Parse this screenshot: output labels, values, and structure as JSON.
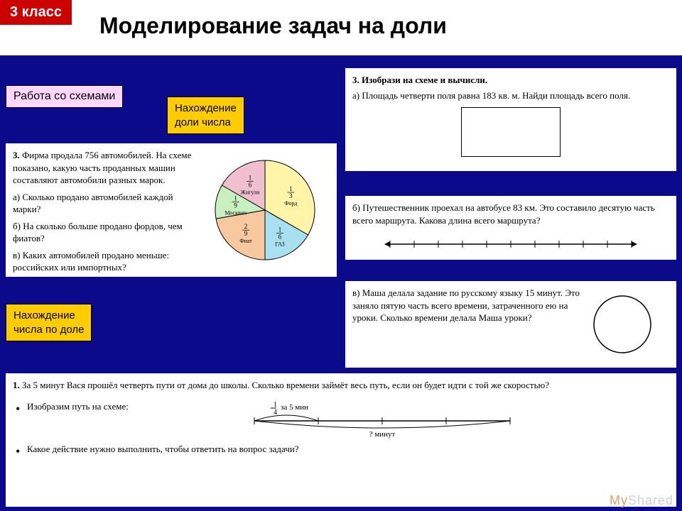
{
  "header": {
    "grade_badge": "3 класс",
    "title": "Моделирование задач на доли"
  },
  "labels": {
    "pink": "Работа со схемами",
    "yellow1_l1": "Нахождение",
    "yellow1_l2": "доли числа",
    "yellow2_l1": "Нахождение",
    "yellow2_l2": "числа по доле"
  },
  "task_cars": {
    "num": "3.",
    "intro": "Фирма продала 756 автомобилей. На схеме показано, какую часть проданных машин составляют автомобили разных марок.",
    "a": "а) Сколько продано автомобилей каждой марки?",
    "b": "б) На сколько больше продано фордов, чем фиатов?",
    "c": "в) Каких автомобилей продано меньше: российских или импортных?",
    "pie": {
      "slices": [
        {
          "label": "Форд",
          "frac_n": "1",
          "frac_d": "3",
          "start": -90,
          "end": 30,
          "fill": "#fff4a8"
        },
        {
          "label": "ГАЗ",
          "frac_n": "1",
          "frac_d": "6",
          "start": 30,
          "end": 90,
          "fill": "#a8e0f0"
        },
        {
          "label": "Фиат",
          "frac_n": "2",
          "frac_d": "9",
          "start": 90,
          "end": 170,
          "fill": "#f8c8a0"
        },
        {
          "label": "Москвич",
          "frac_n": "1",
          "frac_d": "9",
          "start": 170,
          "end": 210,
          "fill": "#c8f0c0"
        },
        {
          "label": "Жигули",
          "frac_n": "1",
          "frac_d": "6",
          "start": 210,
          "end": 270,
          "fill": "#f0c0d0"
        }
      ],
      "stroke": "#000000"
    }
  },
  "task_scheme": {
    "num": "3.",
    "title": "Изобрази на схеме и вычисли.",
    "a": "а) Площадь четверти поля равна 183 кв. м. Найди площадь всего поля."
  },
  "task_travel": {
    "b": "б) Путешественник проехал на автобусе 83 км. Это составило десятую часть всего маршрута. Какова длина всего маршрута?",
    "ticks": 10
  },
  "task_masha": {
    "v": "в) Маша делала задание по русскому языку 15 минут. Это заняло пятую часть всего времени, затраченного ею на уроки. Сколько времени делала Маша уроки?"
  },
  "task_vasya": {
    "num": "1.",
    "intro": "За 5 минут Вася прошёл четверть пути от дома до школы. Сколько времени займёт весь путь, если он будет идти с той же скоростью?",
    "li1": "Изобразим путь на схеме:",
    "li2": "Какое действие нужно выполнить, чтобы ответить на вопрос задачи?",
    "frac_label_n": "1",
    "frac_label_d": "4",
    "frac_label_text": "за 5 мин",
    "bottom_label": "? минут",
    "ticks": 4
  },
  "watermark": {
    "my": "My",
    "shared": "Shared"
  },
  "colors": {
    "bg": "#0a0a8a",
    "header_bg": "#ffffff",
    "badge_bg": "#cc0000",
    "pink": "#ffd6ff",
    "yellow": "#ffcc00"
  }
}
